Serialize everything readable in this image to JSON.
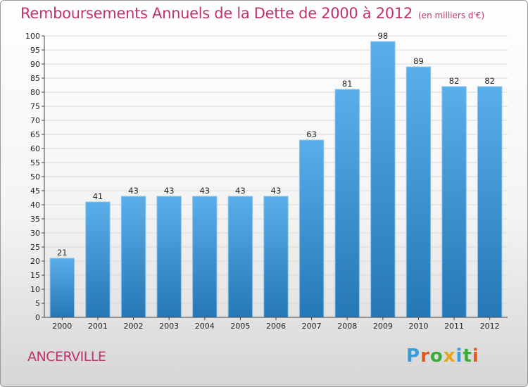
{
  "title": "Remboursements Annuels de la Dette de 2000 à 2012",
  "unit": "(en milliers d'€)",
  "commune": "ANCERVILLE",
  "logo": {
    "letters": [
      "P",
      "r",
      "o",
      "x",
      "i",
      "t",
      "i"
    ],
    "colors": [
      "#3a9bd9",
      "#e8561f",
      "#3cab3a",
      "#e8a617",
      "#3a9bd9",
      "#3cab3a",
      "#e8561f"
    ]
  },
  "colors": {
    "bar": "#4a9fe0",
    "bar_dark": "#2677b5",
    "title": "#c0326e"
  },
  "chart_data": {
    "type": "bar",
    "title": "Remboursements Annuels de la Dette de 2000 à 2012",
    "xlabel": "",
    "ylabel": "",
    "categories": [
      "2000",
      "2001",
      "2002",
      "2003",
      "2004",
      "2005",
      "2006",
      "2007",
      "2008",
      "2009",
      "2010",
      "2011",
      "2012"
    ],
    "values": [
      21,
      41,
      43,
      43,
      43,
      43,
      43,
      63,
      81,
      98,
      89,
      82,
      82
    ],
    "ylim": [
      0,
      100
    ],
    "ytick_step": 5,
    "grid": true,
    "data_labels": true
  }
}
